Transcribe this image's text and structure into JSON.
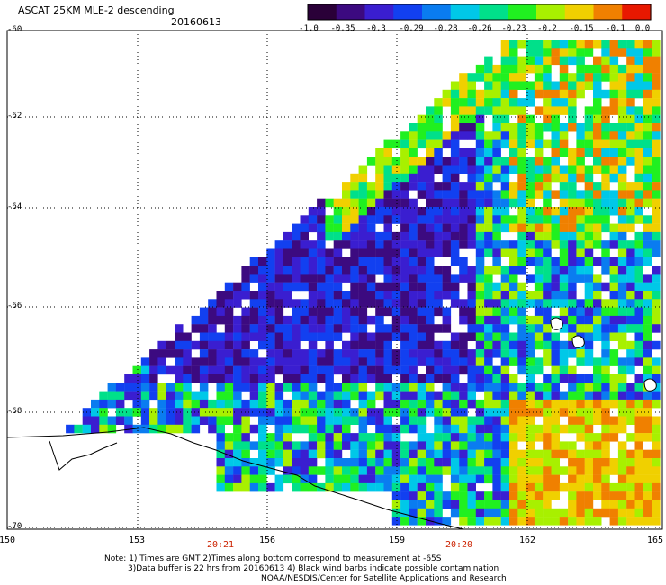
{
  "header": {
    "title": "ASCAT 25KM MLE-2 descending",
    "date": "20160613"
  },
  "colorbar": {
    "ticks": [
      "-1.0",
      "-0.35",
      "-0.3",
      "-0.29",
      "-0.28",
      "-0.26",
      "-0.23",
      "-0.2",
      "-0.15",
      "-0.1",
      "0.0"
    ],
    "colors": [
      "#2a0038",
      "#3c0a80",
      "#3a1ed0",
      "#1240f0",
      "#0a7cf0",
      "#00c8e8",
      "#00e08a",
      "#20f020",
      "#a8f000",
      "#f0d000",
      "#f08000",
      "#e81800"
    ]
  },
  "map": {
    "lat_labels": [
      "-60",
      "-62",
      "-64",
      "-66",
      "-68",
      "-70"
    ],
    "lon_labels": [
      "150",
      "153",
      "156",
      "159",
      "162",
      "165"
    ],
    "time_labels": [
      "20:21",
      "20:20"
    ]
  },
  "footer": {
    "line1": "Note: 1) Times are GMT 2)Times along bottom correspond to measurement at -65S",
    "line2": "3)Data buffer is 22 hrs from 20160613 4) Black wind barbs indicate possible contamination",
    "line3": "NOAA/NESDIS/Center for Satellite Applications and Research"
  }
}
